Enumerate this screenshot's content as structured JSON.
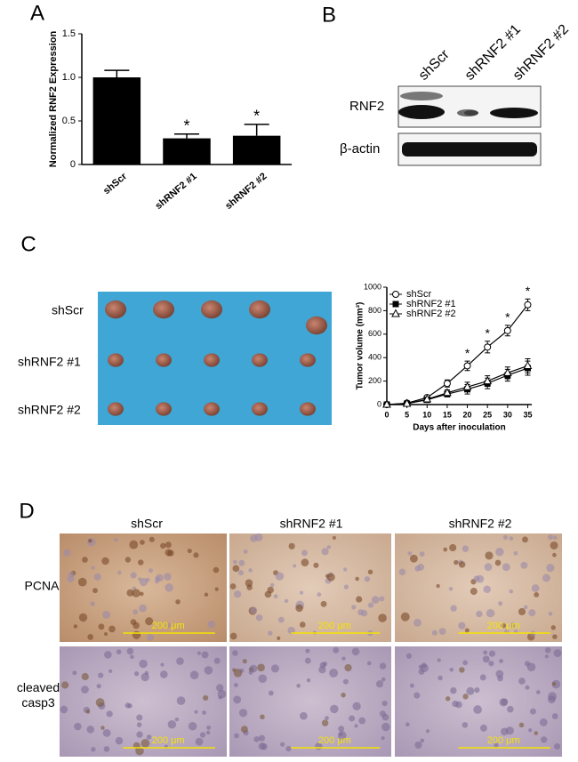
{
  "panel_labels": [
    "A",
    "B",
    "C",
    "D"
  ],
  "chart_data": [
    {
      "type": "bar",
      "categories": [
        "shScr",
        "shRNF2 #1",
        "shRNF2 #2"
      ],
      "values": [
        1.0,
        0.3,
        0.33
      ],
      "error": [
        0.08,
        0.05,
        0.13
      ],
      "significance": [
        null,
        "*",
        "*"
      ],
      "color": "#000000",
      "ylabel": "Normalized RNF2 Expression",
      "ylim": [
        0,
        1.5
      ],
      "yticks": [
        0,
        0.5,
        {
          "value": 1,
          "label": "1.0"
        },
        1.5
      ]
    },
    {
      "type": "line",
      "x": [
        0,
        5,
        10,
        15,
        20,
        25,
        30,
        35
      ],
      "series": [
        {
          "name": "shScr",
          "color": "#000000",
          "marker": "circle-open",
          "values": [
            0,
            12,
            60,
            180,
            330,
            490,
            630,
            850
          ],
          "error": [
            0,
            5,
            12,
            30,
            40,
            50,
            45,
            50
          ]
        },
        {
          "name": "shRNF2 #1",
          "color": "#000000",
          "marker": "square",
          "values": [
            0,
            8,
            40,
            90,
            130,
            180,
            250,
            310
          ],
          "error": [
            0,
            4,
            10,
            25,
            40,
            45,
            50,
            60
          ]
        },
        {
          "name": "shRNF2 #2",
          "color": "#000000",
          "marker": "triangle-open",
          "values": [
            0,
            8,
            45,
            100,
            150,
            200,
            270,
            330
          ],
          "error": [
            0,
            4,
            10,
            25,
            40,
            45,
            50,
            60
          ]
        }
      ],
      "significance": [
        null,
        null,
        null,
        null,
        "*",
        "*",
        "*",
        "*"
      ],
      "xlabel": "Days after inoculation",
      "ylabel": "Tumor volume (mm³)",
      "xlim": [
        0,
        36
      ],
      "xticks": [
        0,
        5,
        10,
        15,
        20,
        25,
        30,
        35
      ],
      "ylim": [
        0,
        1000
      ],
      "yticks": [
        0,
        200,
        400,
        600,
        800,
        1000
      ],
      "legend": "upper-left"
    }
  ],
  "blot": {
    "lanes": [
      "shScr",
      "shRNF2 #1",
      "shRNF2 #2"
    ],
    "rows": [
      "RNF2",
      "β-actin"
    ]
  },
  "tumor_photo": {
    "rows": [
      "shScr",
      "shRNF2 #1",
      "shRNF2 #2"
    ]
  },
  "ihc": {
    "columns": [
      "shScr",
      "shRNF2 #1",
      "shRNF2 #2"
    ],
    "rows": [
      "PCNA",
      "cleaved casp3"
    ],
    "scale_bar": "200 μm"
  }
}
